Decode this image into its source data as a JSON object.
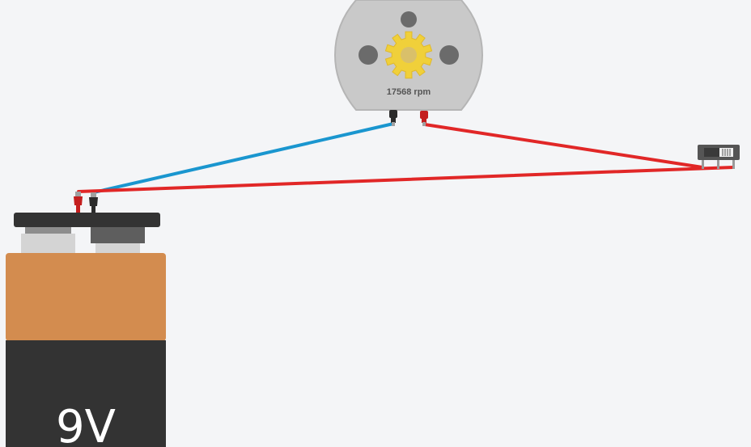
{
  "motor": {
    "speed_label": "17568 rpm",
    "body_color": "#c9c9c9",
    "gear_color": "#f0d03a"
  },
  "battery": {
    "label": "9V",
    "top_color": "#d38c4f",
    "bottom_color": "#333333"
  },
  "switch": {
    "color": "#555555"
  },
  "wires": {
    "colors": {
      "blue": "#1a96cf",
      "red": "#e12727"
    }
  }
}
